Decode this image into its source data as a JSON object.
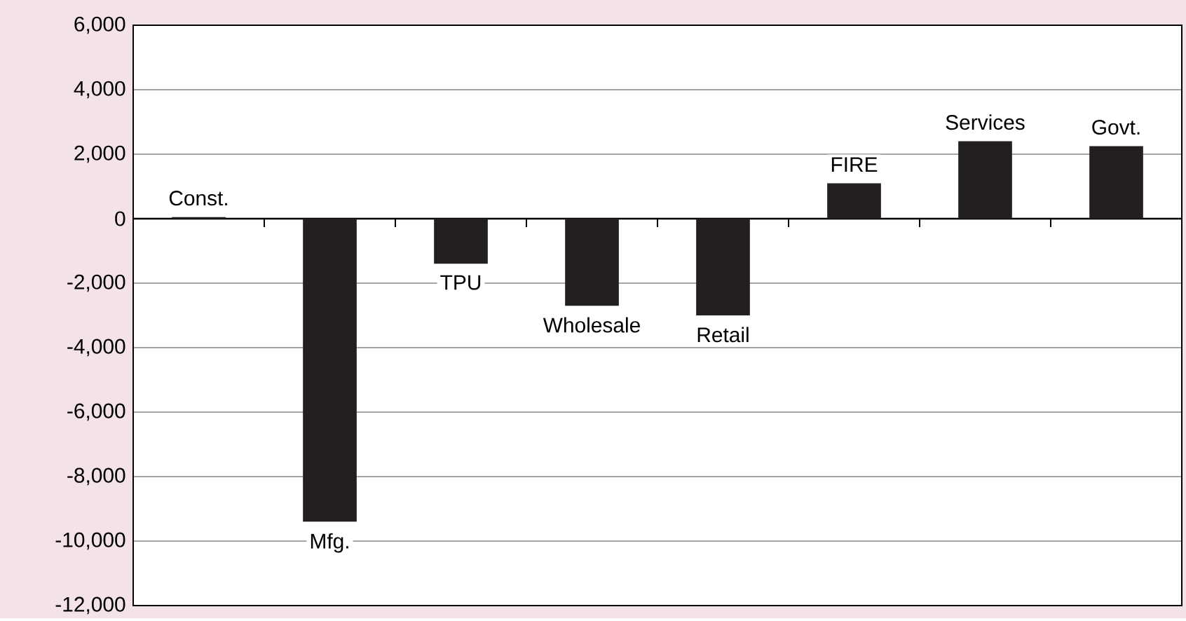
{
  "chart_data": {
    "type": "bar",
    "categories": [
      "Const.",
      "Mfg.",
      "TPU",
      "Wholesale",
      "Retail",
      "FIRE",
      "Services",
      "Govt."
    ],
    "values": [
      50,
      -9400,
      -1400,
      -2700,
      -3000,
      1100,
      2400,
      2250
    ],
    "color": "#231f20",
    "ylim": [
      -12000,
      6000
    ],
    "yticks": [
      {
        "value": -12000,
        "label": "-12,000"
      },
      {
        "value": -10000,
        "label": "-10,000"
      },
      {
        "value": -8000,
        "label": "-8,000"
      },
      {
        "value": -6000,
        "label": "-6,000"
      },
      {
        "value": -4000,
        "label": "-4,000"
      },
      {
        "value": -2000,
        "label": "-2,000"
      },
      0,
      {
        "value": 2000,
        "label": "2,000"
      },
      {
        "value": 4000,
        "label": "4,000"
      },
      {
        "value": 6000,
        "label": "6,000"
      }
    ],
    "grid": "y"
  }
}
